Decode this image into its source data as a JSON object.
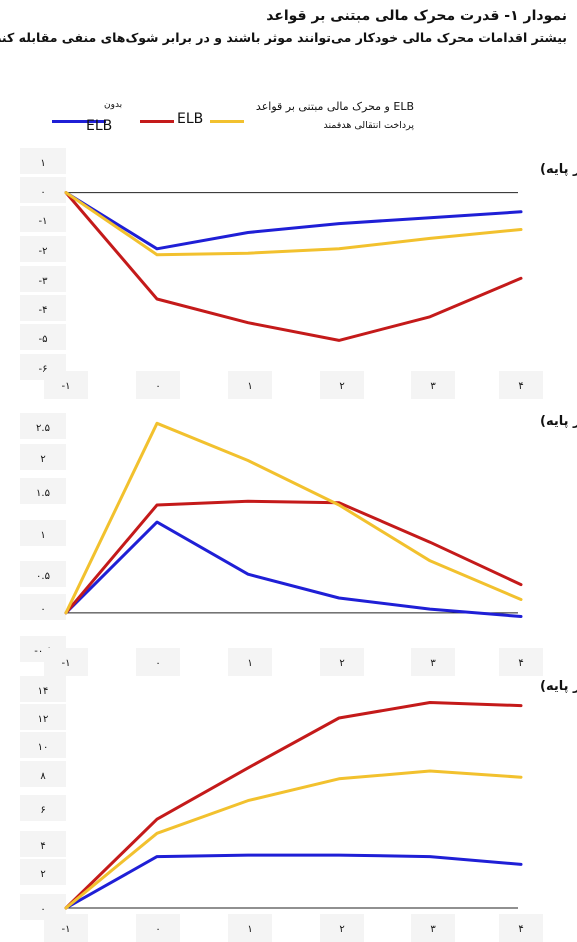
{
  "header": {
    "title": "نمودار ۱- قدرت محرک مالی مبتنی بر قواعد",
    "subtitle": "بیشتر اقدامات محرک مالی خودکار می‌توانند موثر باشند و در برابر شوک‌های منفی مقابله کنند"
  },
  "legend": {
    "blue": {
      "top": "بدون",
      "bottom": "ELB",
      "color": "#1f1fd6"
    },
    "red": {
      "label": "ELB",
      "color": "#c41a1a"
    },
    "yellow": {
      "top": "ELB و محرک مالی مبتنی بر قواعد",
      "bottom": "پرداخت انتقالی هدفمند",
      "color": "#f2c12e"
    }
  },
  "chart_data": [
    {
      "type": "line",
      "title": "تولید ناخالص داخلی (درصد انحراف از پایه)",
      "x": [
        -1,
        0,
        1,
        2,
        3,
        4
      ],
      "x_tick_labels": [
        "-۱",
        "۰",
        "۱",
        "۲",
        "۳",
        "۴"
      ],
      "y_tick_labels": [
        "۱",
        "۰",
        "-۱",
        "-۲",
        "-۳",
        "-۴",
        "-۵",
        "-۶"
      ],
      "y_tick_values": [
        1,
        0,
        -1,
        -2,
        -3,
        -4,
        -5,
        -6
      ],
      "ylim": [
        -6,
        1
      ],
      "series": [
        {
          "name": "بدون ELB",
          "color": "#1f1fd6",
          "values": [
            0,
            -1.9,
            -1.35,
            -1.05,
            -0.85,
            -0.65
          ]
        },
        {
          "name": "ELB",
          "color": "#c41a1a",
          "values": [
            0,
            -3.6,
            -4.4,
            -5.0,
            -4.2,
            -2.9
          ]
        },
        {
          "name": "ELB و محرک مالی مبتنی بر قواعد",
          "color": "#f2c12e",
          "values": [
            0,
            -2.1,
            -2.05,
            -1.9,
            -1.55,
            -1.25
          ]
        }
      ]
    },
    {
      "type": "line",
      "title": "کسری مالی به تولید ناخالص داخلی (واحد درصد انحراف از پایه)",
      "x": [
        -1,
        0,
        1,
        2,
        3,
        4
      ],
      "x_tick_labels": [
        "-۱",
        "۰",
        "۱",
        "۲",
        "۳",
        "۴"
      ],
      "y_tick_labels": [
        "۲.۵",
        "۲",
        "۱.۵",
        "۱",
        "۰.۵",
        "۰",
        "-۰.۵"
      ],
      "y_tick_values": [
        2.5,
        2,
        1.5,
        1,
        0.5,
        0,
        -0.5
      ],
      "ylim": [
        -0.5,
        2.5
      ],
      "series": [
        {
          "name": "بدون ELB",
          "color": "#1f1fd6",
          "values": [
            0,
            1.22,
            0.52,
            0.2,
            0.05,
            -0.05
          ]
        },
        {
          "name": "ELB",
          "color": "#c41a1a",
          "values": [
            0,
            1.45,
            1.5,
            1.48,
            0.95,
            0.38
          ]
        },
        {
          "name": "ELB و محرک مالی مبتنی بر قواعد",
          "color": "#f2c12e",
          "values": [
            0,
            2.55,
            2.05,
            1.45,
            0.7,
            0.18
          ]
        }
      ]
    },
    {
      "type": "line",
      "title": "بدهی به تولید ناخالص داخلی (واحد درصد انحراف از پایه)",
      "x": [
        -1,
        0,
        1,
        2,
        3,
        4
      ],
      "x_tick_labels": [
        "-۱",
        "۰",
        "۱",
        "۲",
        "۳",
        "۴"
      ],
      "y_tick_labels": [
        "۱۴",
        "۱۲",
        "۱۰",
        "۸",
        "۶",
        "۴",
        "۲",
        "۰"
      ],
      "y_tick_values": [
        14,
        12,
        10,
        8,
        6,
        4,
        2,
        0
      ],
      "ylim": [
        0,
        14
      ],
      "series": [
        {
          "name": "بدون ELB",
          "color": "#1f1fd6",
          "values": [
            0,
            3.3,
            3.4,
            3.4,
            3.3,
            2.8
          ]
        },
        {
          "name": "ELB",
          "color": "#c41a1a",
          "values": [
            0,
            5.7,
            9.0,
            12.2,
            13.2,
            13.0
          ]
        },
        {
          "name": "ELB و محرک مالی مبتنی بر قواعد",
          "color": "#f2c12e",
          "values": [
            0,
            4.8,
            6.9,
            8.3,
            8.8,
            8.4
          ]
        }
      ]
    }
  ]
}
